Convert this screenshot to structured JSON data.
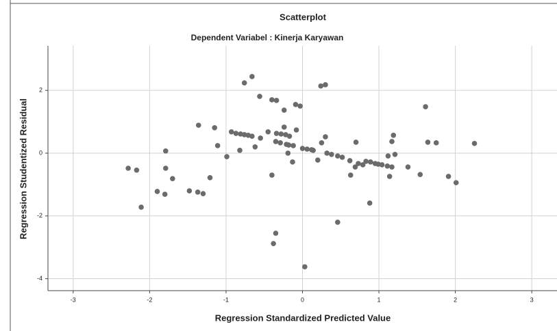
{
  "chart_data": {
    "type": "scatter",
    "title": "Scatterplot",
    "subtitle": "Dependent Variabel : Kinerja Karyawan",
    "x_label": "Regression Standardized Predicted Value",
    "y_label": "Regression Studentized Residual",
    "color": "#6b6b6b",
    "grid": true,
    "xlim": [
      -3.33,
      3.33
    ],
    "ylim": [
      -4.38,
      3.42
    ],
    "xticks": [
      -3,
      -2,
      -1,
      0,
      1,
      2,
      3
    ],
    "yticks": [
      -4,
      -2,
      0,
      2
    ],
    "x": [
      -2.28,
      -2.17,
      -2.11,
      -1.9,
      -1.8,
      -1.79,
      -1.79,
      -1.7,
      -1.48,
      -1.37,
      -1.3,
      -1.36,
      -1.21,
      -1.15,
      -1.11,
      -0.99,
      -0.93,
      -0.87,
      -0.81,
      -0.76,
      -0.71,
      -0.66,
      -0.82,
      -0.76,
      -0.66,
      -0.62,
      -0.56,
      -0.55,
      -0.45,
      -0.4,
      -0.4,
      -0.34,
      -0.38,
      -0.35,
      -0.35,
      -0.29,
      -0.34,
      -0.28,
      -0.22,
      -0.17,
      -0.24,
      -0.24,
      -0.21,
      -0.19,
      -0.18,
      -0.13,
      -0.12,
      -0.08,
      -0.09,
      -0.03,
      0.0,
      0.03,
      0.06,
      0.12,
      0.14,
      0.2,
      0.25,
      0.24,
      0.3,
      0.3,
      0.32,
      0.38,
      0.46,
      0.52,
      0.46,
      0.62,
      0.7,
      0.73,
      0.79,
      0.83,
      0.89,
      0.95,
      0.99,
      1.04,
      1.11,
      1.17,
      1.12,
      1.19,
      1.14,
      1.17,
      1.21,
      1.38,
      1.54,
      1.61,
      1.64,
      1.75,
      1.91,
      2.01,
      2.25,
      0.63,
      0.69,
      0.88
    ],
    "values": [
      -0.48,
      -0.54,
      -1.72,
      -1.22,
      -1.31,
      0.07,
      -0.48,
      -0.81,
      -1.2,
      -1.24,
      -1.29,
      0.89,
      -0.78,
      0.81,
      0.24,
      -0.11,
      0.68,
      0.63,
      0.61,
      0.59,
      0.57,
      0.54,
      0.09,
      2.24,
      2.44,
      0.2,
      1.81,
      0.48,
      0.68,
      -0.7,
      1.7,
      1.68,
      -2.88,
      -2.55,
      0.37,
      0.33,
      0.63,
      0.61,
      0.59,
      0.54,
      1.37,
      0.83,
      0.28,
      0.0,
      0.26,
      -0.28,
      0.24,
      0.74,
      1.55,
      1.5,
      0.15,
      -3.62,
      0.13,
      0.11,
      0.09,
      -0.22,
      0.33,
      2.14,
      2.18,
      0.52,
      0.0,
      -0.04,
      -0.09,
      -0.13,
      -2.2,
      -0.24,
      0.35,
      -0.33,
      -0.37,
      -0.26,
      -0.28,
      -0.33,
      -0.35,
      -0.37,
      -0.41,
      -0.44,
      -0.09,
      0.57,
      -0.74,
      0.37,
      -0.04,
      -0.44,
      -0.68,
      1.48,
      0.35,
      0.33,
      -0.74,
      -0.94,
      0.31,
      -0.7,
      -0.44,
      -1.59
    ]
  }
}
